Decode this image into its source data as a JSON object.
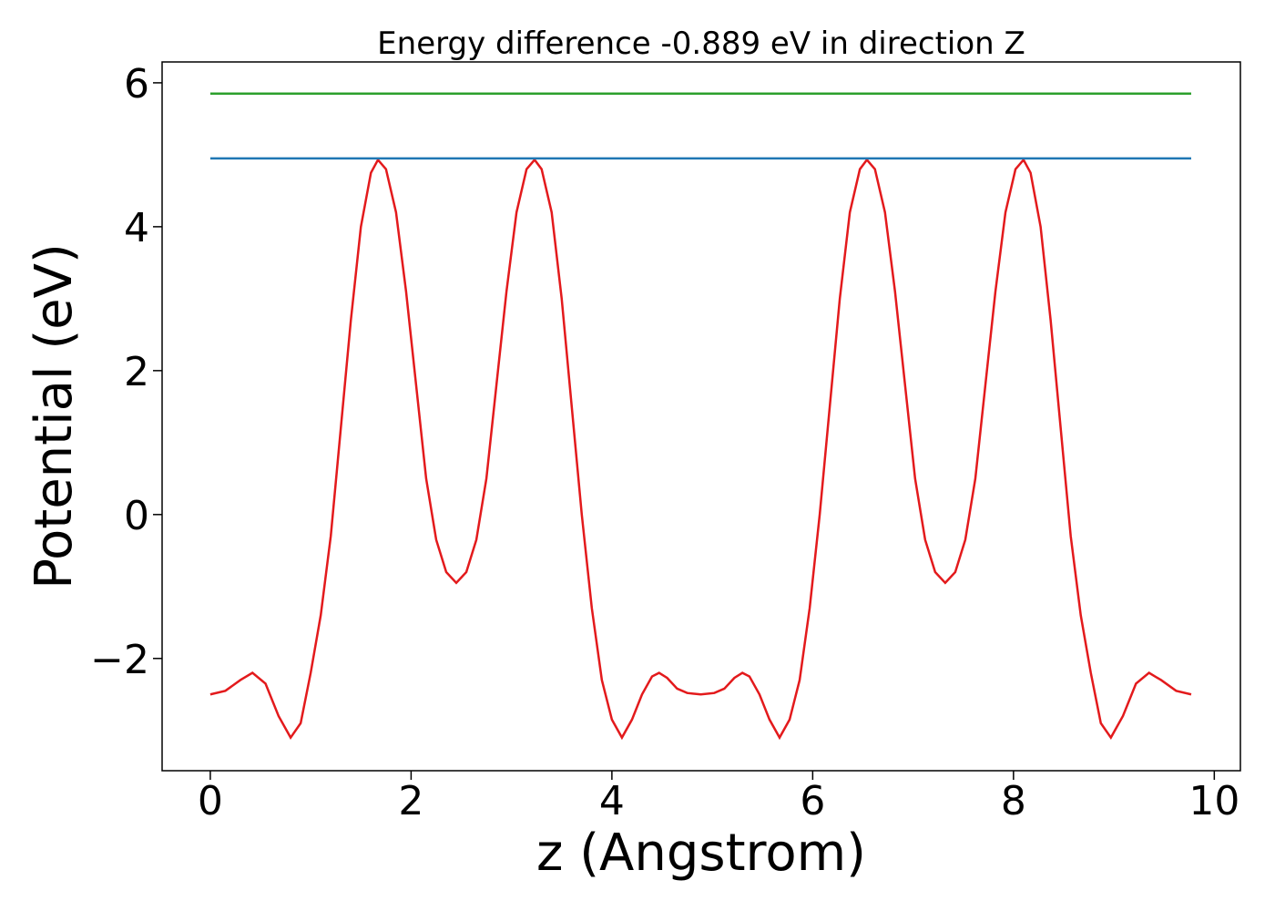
{
  "chart_data": {
    "type": "line",
    "title": "Energy difference -0.889 eV in direction Z",
    "xlabel": "z (Angstrom)",
    "ylabel": "Potential (eV)",
    "xlim": [
      -0.48,
      10.26
    ],
    "ylim": [
      -3.56,
      6.29
    ],
    "xticks": [
      0,
      2,
      4,
      6,
      8,
      10
    ],
    "yticks": [
      {
        "value": -2,
        "label": "−2"
      },
      0,
      2,
      4,
      6
    ],
    "series": [
      {
        "color": "#e31a1c",
        "x": [
          0,
          0.15,
          0.3,
          0.42,
          0.55,
          0.68,
          0.8,
          0.9,
          1.0,
          1.1,
          1.2,
          1.3,
          1.4,
          1.5,
          1.6,
          1.67,
          1.75,
          1.85,
          1.95,
          2.05,
          2.15,
          2.25,
          2.35,
          2.45,
          2.55,
          2.65,
          2.75,
          2.85,
          2.95,
          3.05,
          3.15,
          3.23,
          3.3,
          3.4,
          3.5,
          3.6,
          3.7,
          3.8,
          3.9,
          4.0,
          4.1,
          4.2,
          4.3,
          4.4,
          4.47,
          4.55,
          4.65,
          4.75,
          4.885,
          5.02,
          5.12,
          5.22,
          5.3,
          5.37,
          5.47,
          5.57,
          5.67,
          5.77,
          5.87,
          5.97,
          6.07,
          6.17,
          6.27,
          6.37,
          6.47,
          6.54,
          6.62,
          6.72,
          6.82,
          6.92,
          7.02,
          7.12,
          7.22,
          7.32,
          7.42,
          7.52,
          7.62,
          7.72,
          7.82,
          7.92,
          8.02,
          8.1,
          8.17,
          8.27,
          8.37,
          8.47,
          8.57,
          8.67,
          8.77,
          8.87,
          8.97,
          9.09,
          9.22,
          9.35,
          9.47,
          9.62,
          9.77
        ],
        "values": [
          -2.5,
          -2.45,
          -2.3,
          -2.2,
          -2.35,
          -2.8,
          -3.1,
          -2.9,
          -2.2,
          -1.4,
          -0.3,
          1.2,
          2.7,
          4.0,
          4.75,
          4.93,
          4.8,
          4.2,
          3.1,
          1.8,
          0.5,
          -0.35,
          -0.8,
          -0.95,
          -0.8,
          -0.35,
          0.5,
          1.8,
          3.1,
          4.2,
          4.8,
          4.93,
          4.8,
          4.2,
          3.0,
          1.5,
          0.0,
          -1.3,
          -2.3,
          -2.85,
          -3.1,
          -2.85,
          -2.5,
          -2.25,
          -2.2,
          -2.27,
          -2.42,
          -2.48,
          -2.5,
          -2.48,
          -2.42,
          -2.27,
          -2.2,
          -2.25,
          -2.5,
          -2.85,
          -3.1,
          -2.85,
          -2.3,
          -1.3,
          0.0,
          1.5,
          3.0,
          4.2,
          4.8,
          4.93,
          4.8,
          4.2,
          3.1,
          1.8,
          0.5,
          -0.35,
          -0.8,
          -0.95,
          -0.8,
          -0.35,
          0.5,
          1.8,
          3.1,
          4.2,
          4.8,
          4.93,
          4.75,
          4.0,
          2.7,
          1.2,
          -0.3,
          -1.4,
          -2.2,
          -2.9,
          -3.1,
          -2.8,
          -2.35,
          -2.2,
          -2.3,
          -2.45,
          -2.5
        ]
      },
      {
        "color": "#1f77b4",
        "x": [
          0,
          9.77
        ],
        "values": [
          4.95,
          4.95
        ]
      },
      {
        "color": "#2ca02c",
        "x": [
          0,
          9.77
        ],
        "values": [
          5.85,
          5.85
        ]
      }
    ]
  }
}
